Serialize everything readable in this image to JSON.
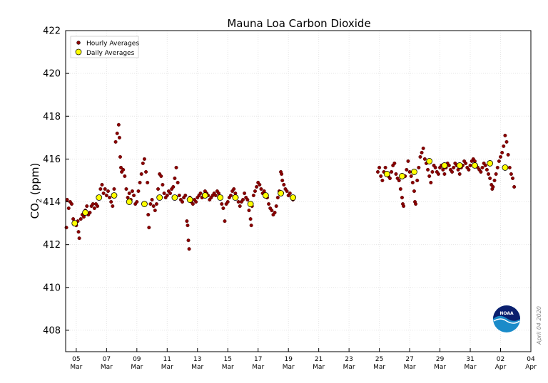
{
  "chart_data": {
    "type": "scatter",
    "title": "Mauna Loa Carbon Dioxide",
    "ylabel_main": "CO",
    "ylabel_sub": "2",
    "ylabel_unit": " (ppm)",
    "ylim": [
      407,
      422
    ],
    "yticks": [
      408,
      410,
      412,
      414,
      416,
      418,
      420,
      422
    ],
    "xlim_days": [
      4.3,
      35.0
    ],
    "xticks": [
      {
        "day": 5,
        "d": "05",
        "m": "Mar"
      },
      {
        "day": 7,
        "d": "07",
        "m": "Mar"
      },
      {
        "day": 9,
        "d": "09",
        "m": "Mar"
      },
      {
        "day": 11,
        "d": "11",
        "m": "Mar"
      },
      {
        "day": 13,
        "d": "13",
        "m": "Mar"
      },
      {
        "day": 15,
        "d": "15",
        "m": "Mar"
      },
      {
        "day": 17,
        "d": "17",
        "m": "Mar"
      },
      {
        "day": 19,
        "d": "19",
        "m": "Mar"
      },
      {
        "day": 21,
        "d": "21",
        "m": "Mar"
      },
      {
        "day": 23,
        "d": "23",
        "m": "Mar"
      },
      {
        "day": 25,
        "d": "25",
        "m": "Mar"
      },
      {
        "day": 27,
        "d": "27",
        "m": "Mar"
      },
      {
        "day": 29,
        "d": "29",
        "m": "Mar"
      },
      {
        "day": 31,
        "d": "31",
        "m": "Mar"
      },
      {
        "day": 33,
        "d": "02",
        "m": "Apr"
      },
      {
        "day": 35,
        "d": "04",
        "m": "Apr"
      }
    ],
    "grid": true,
    "legend_position": "top-left",
    "series": [
      {
        "name": "Hourly Averages",
        "color": "#8b0000",
        "points": [
          [
            4.35,
            412.8
          ],
          [
            4.4,
            414.1
          ],
          [
            4.5,
            413.7
          ],
          [
            4.6,
            414.0
          ],
          [
            4.7,
            413.9
          ],
          [
            4.8,
            413.2
          ],
          [
            4.9,
            413.0
          ],
          [
            5.0,
            412.9
          ],
          [
            5.1,
            413.1
          ],
          [
            5.15,
            412.6
          ],
          [
            5.2,
            412.3
          ],
          [
            5.3,
            413.2
          ],
          [
            5.4,
            413.4
          ],
          [
            5.5,
            413.3
          ],
          [
            5.6,
            413.6
          ],
          [
            5.7,
            413.8
          ],
          [
            5.8,
            413.4
          ],
          [
            5.9,
            413.5
          ],
          [
            6.0,
            413.8
          ],
          [
            6.1,
            413.9
          ],
          [
            6.2,
            413.7
          ],
          [
            6.3,
            413.9
          ],
          [
            6.4,
            413.8
          ],
          [
            6.5,
            414.2
          ],
          [
            6.6,
            414.6
          ],
          [
            6.7,
            414.8
          ],
          [
            6.8,
            414.4
          ],
          [
            6.9,
            414.6
          ],
          [
            7.0,
            414.3
          ],
          [
            7.1,
            414.5
          ],
          [
            7.2,
            414.2
          ],
          [
            7.3,
            414.0
          ],
          [
            7.4,
            413.8
          ],
          [
            7.5,
            414.6
          ],
          [
            7.6,
            416.8
          ],
          [
            7.7,
            417.2
          ],
          [
            7.8,
            417.6
          ],
          [
            7.85,
            417.0
          ],
          [
            7.9,
            416.1
          ],
          [
            7.95,
            415.6
          ],
          [
            8.0,
            415.4
          ],
          [
            8.1,
            415.5
          ],
          [
            8.2,
            415.2
          ],
          [
            8.3,
            414.6
          ],
          [
            8.4,
            414.2
          ],
          [
            8.5,
            414.4
          ],
          [
            8.6,
            414.1
          ],
          [
            8.7,
            414.5
          ],
          [
            8.8,
            414.3
          ],
          [
            8.9,
            413.9
          ],
          [
            9.0,
            414.0
          ],
          [
            9.1,
            414.5
          ],
          [
            9.2,
            414.9
          ],
          [
            9.3,
            415.3
          ],
          [
            9.4,
            415.8
          ],
          [
            9.5,
            416.0
          ],
          [
            9.6,
            415.4
          ],
          [
            9.7,
            414.9
          ],
          [
            9.75,
            413.4
          ],
          [
            9.8,
            412.8
          ],
          [
            9.9,
            413.9
          ],
          [
            10.0,
            414.1
          ],
          [
            10.1,
            413.8
          ],
          [
            10.2,
            413.6
          ],
          [
            10.3,
            413.9
          ],
          [
            10.4,
            414.6
          ],
          [
            10.5,
            415.3
          ],
          [
            10.6,
            415.2
          ],
          [
            10.7,
            414.8
          ],
          [
            10.8,
            414.4
          ],
          [
            10.9,
            414.2
          ],
          [
            11.0,
            414.3
          ],
          [
            11.1,
            414.5
          ],
          [
            11.2,
            414.4
          ],
          [
            11.3,
            414.6
          ],
          [
            11.4,
            414.7
          ],
          [
            11.5,
            415.1
          ],
          [
            11.6,
            415.6
          ],
          [
            11.7,
            414.9
          ],
          [
            11.8,
            414.3
          ],
          [
            11.9,
            414.1
          ],
          [
            12.0,
            414.0
          ],
          [
            12.1,
            414.2
          ],
          [
            12.2,
            414.3
          ],
          [
            12.3,
            413.1
          ],
          [
            12.35,
            412.9
          ],
          [
            12.4,
            412.2
          ],
          [
            12.45,
            411.8
          ],
          [
            12.5,
            414.2
          ],
          [
            12.6,
            414.0
          ],
          [
            12.7,
            413.9
          ],
          [
            12.8,
            414.1
          ],
          [
            12.9,
            414.0
          ],
          [
            13.0,
            414.2
          ],
          [
            13.1,
            414.3
          ],
          [
            13.2,
            414.4
          ],
          [
            13.3,
            414.2
          ],
          [
            13.4,
            414.3
          ],
          [
            13.5,
            414.5
          ],
          [
            13.6,
            414.4
          ],
          [
            13.7,
            414.3
          ],
          [
            13.8,
            414.1
          ],
          [
            13.9,
            414.2
          ],
          [
            14.0,
            414.3
          ],
          [
            14.1,
            414.4
          ],
          [
            14.2,
            414.3
          ],
          [
            14.3,
            414.5
          ],
          [
            14.4,
            414.4
          ],
          [
            14.5,
            414.2
          ],
          [
            14.6,
            413.9
          ],
          [
            14.7,
            413.7
          ],
          [
            14.8,
            413.1
          ],
          [
            14.9,
            413.9
          ],
          [
            15.0,
            414.0
          ],
          [
            15.1,
            414.2
          ],
          [
            15.2,
            414.3
          ],
          [
            15.3,
            414.5
          ],
          [
            15.4,
            414.6
          ],
          [
            15.5,
            414.4
          ],
          [
            15.6,
            414.2
          ],
          [
            15.7,
            414.0
          ],
          [
            15.8,
            413.8
          ],
          [
            15.9,
            414.0
          ],
          [
            16.0,
            414.1
          ],
          [
            16.1,
            414.4
          ],
          [
            16.2,
            414.2
          ],
          [
            16.3,
            414.1
          ],
          [
            16.4,
            413.6
          ],
          [
            16.5,
            413.2
          ],
          [
            16.55,
            412.9
          ],
          [
            16.6,
            413.8
          ],
          [
            16.7,
            414.3
          ],
          [
            16.8,
            414.5
          ],
          [
            16.9,
            414.7
          ],
          [
            17.0,
            414.9
          ],
          [
            17.1,
            414.8
          ],
          [
            17.2,
            414.6
          ],
          [
            17.3,
            414.4
          ],
          [
            17.4,
            414.5
          ],
          [
            17.5,
            414.3
          ],
          [
            17.6,
            414.2
          ],
          [
            17.7,
            413.9
          ],
          [
            17.8,
            413.7
          ],
          [
            17.9,
            413.6
          ],
          [
            18.0,
            413.4
          ],
          [
            18.1,
            413.5
          ],
          [
            18.2,
            413.8
          ],
          [
            18.3,
            414.2
          ],
          [
            18.4,
            414.5
          ],
          [
            18.5,
            415.4
          ],
          [
            18.55,
            415.3
          ],
          [
            18.6,
            415.0
          ],
          [
            18.7,
            414.8
          ],
          [
            18.8,
            414.6
          ],
          [
            18.9,
            414.5
          ],
          [
            19.0,
            414.3
          ],
          [
            19.1,
            414.4
          ],
          [
            19.2,
            414.2
          ],
          [
            19.3,
            414.1
          ],
          [
            24.9,
            415.4
          ],
          [
            25.0,
            415.6
          ],
          [
            25.1,
            415.2
          ],
          [
            25.2,
            415.0
          ],
          [
            25.3,
            415.4
          ],
          [
            25.4,
            415.6
          ],
          [
            25.5,
            415.3
          ],
          [
            25.6,
            415.2
          ],
          [
            25.7,
            415.1
          ],
          [
            25.8,
            415.4
          ],
          [
            25.9,
            415.7
          ],
          [
            26.0,
            415.8
          ],
          [
            26.1,
            415.3
          ],
          [
            26.2,
            415.1
          ],
          [
            26.3,
            415.0
          ],
          [
            26.4,
            414.6
          ],
          [
            26.5,
            414.2
          ],
          [
            26.55,
            413.9
          ],
          [
            26.6,
            413.8
          ],
          [
            26.7,
            415.2
          ],
          [
            26.8,
            415.5
          ],
          [
            26.9,
            415.9
          ],
          [
            27.0,
            415.4
          ],
          [
            27.1,
            415.2
          ],
          [
            27.2,
            414.9
          ],
          [
            27.3,
            414.5
          ],
          [
            27.35,
            414.0
          ],
          [
            27.4,
            413.9
          ],
          [
            27.5,
            415.0
          ],
          [
            27.6,
            415.6
          ],
          [
            27.7,
            416.1
          ],
          [
            27.8,
            416.3
          ],
          [
            27.9,
            416.5
          ],
          [
            28.0,
            416.0
          ],
          [
            28.1,
            415.8
          ],
          [
            28.2,
            415.5
          ],
          [
            28.3,
            415.2
          ],
          [
            28.4,
            414.9
          ],
          [
            28.5,
            415.4
          ],
          [
            28.6,
            415.7
          ],
          [
            28.7,
            415.6
          ],
          [
            28.8,
            415.4
          ],
          [
            28.9,
            415.3
          ],
          [
            29.0,
            415.6
          ],
          [
            29.1,
            415.7
          ],
          [
            29.2,
            415.5
          ],
          [
            29.3,
            415.3
          ],
          [
            29.4,
            415.6
          ],
          [
            29.5,
            415.8
          ],
          [
            29.6,
            415.7
          ],
          [
            29.7,
            415.5
          ],
          [
            29.8,
            415.4
          ],
          [
            29.9,
            415.6
          ],
          [
            30.0,
            415.8
          ],
          [
            30.1,
            415.7
          ],
          [
            30.2,
            415.5
          ],
          [
            30.3,
            415.3
          ],
          [
            30.4,
            415.6
          ],
          [
            30.5,
            415.7
          ],
          [
            30.6,
            415.9
          ],
          [
            30.7,
            415.8
          ],
          [
            30.8,
            415.6
          ],
          [
            30.9,
            415.5
          ],
          [
            31.0,
            415.7
          ],
          [
            31.1,
            415.9
          ],
          [
            31.2,
            416.0
          ],
          [
            31.3,
            415.9
          ],
          [
            31.4,
            415.7
          ],
          [
            31.5,
            415.6
          ],
          [
            31.6,
            415.5
          ],
          [
            31.7,
            415.4
          ],
          [
            31.8,
            415.6
          ],
          [
            31.9,
            415.8
          ],
          [
            32.0,
            415.7
          ],
          [
            32.1,
            415.5
          ],
          [
            32.2,
            415.3
          ],
          [
            32.3,
            415.1
          ],
          [
            32.4,
            414.8
          ],
          [
            32.45,
            414.6
          ],
          [
            32.5,
            414.7
          ],
          [
            32.6,
            415.0
          ],
          [
            32.7,
            415.3
          ],
          [
            32.8,
            415.6
          ],
          [
            32.9,
            415.9
          ],
          [
            33.0,
            416.1
          ],
          [
            33.1,
            416.3
          ],
          [
            33.2,
            416.6
          ],
          [
            33.3,
            417.1
          ],
          [
            33.4,
            416.8
          ],
          [
            33.5,
            416.2
          ],
          [
            33.6,
            415.6
          ],
          [
            33.7,
            415.3
          ],
          [
            33.8,
            415.1
          ],
          [
            33.9,
            414.7
          ]
        ]
      },
      {
        "name": "Daily Averages",
        "color": "#ffff00",
        "points": [
          [
            4.9,
            413.0
          ],
          [
            5.6,
            413.5
          ],
          [
            6.5,
            414.2
          ],
          [
            7.5,
            414.3
          ],
          [
            8.5,
            414.0
          ],
          [
            9.5,
            413.9
          ],
          [
            10.5,
            414.2
          ],
          [
            11.5,
            414.2
          ],
          [
            12.5,
            414.1
          ],
          [
            13.5,
            414.3
          ],
          [
            14.5,
            414.2
          ],
          [
            15.5,
            414.2
          ],
          [
            16.5,
            413.9
          ],
          [
            17.5,
            414.3
          ],
          [
            18.5,
            414.4
          ],
          [
            19.3,
            414.2
          ],
          [
            25.5,
            415.3
          ],
          [
            26.5,
            415.2
          ],
          [
            27.3,
            415.4
          ],
          [
            28.3,
            415.9
          ],
          [
            29.3,
            415.7
          ],
          [
            30.3,
            415.7
          ],
          [
            31.3,
            415.7
          ],
          [
            32.3,
            415.8
          ],
          [
            33.3,
            415.6
          ]
        ]
      }
    ],
    "stamp_text": "April 04 2020",
    "logo_text": "NOAA"
  }
}
